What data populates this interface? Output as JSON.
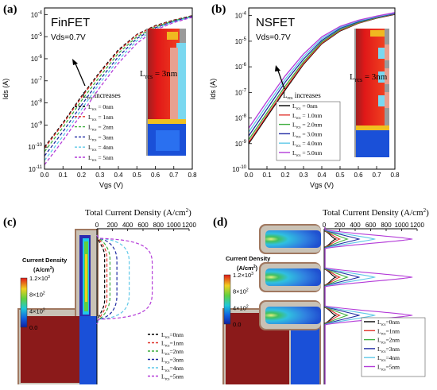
{
  "panels": {
    "a": {
      "label": "(a)",
      "title": "FinFET",
      "vds": "Vds=0.7V",
      "xlabel": "Vgs (V)",
      "ylabel": "Ids (A)",
      "arrow_label": "L",
      "arrow_sub": "rcs",
      "arrow_text": " increases",
      "lrcs_label": "L",
      "lrcs_sub": "rcs",
      "lrcs_value": " = 3nm",
      "x_ticks": [
        "0.0",
        "0.1",
        "0.2",
        "0.3",
        "0.4",
        "0.5",
        "0.6",
        "0.7",
        "0.8"
      ],
      "y_ticks": [
        {
          "base": "10",
          "exp": "-4"
        },
        {
          "base": "10",
          "exp": "-5"
        },
        {
          "base": "10",
          "exp": "-6"
        },
        {
          "base": "10",
          "exp": "-7"
        },
        {
          "base": "10",
          "exp": "-8"
        },
        {
          "base": "10",
          "exp": "-9"
        },
        {
          "base": "10",
          "exp": "-10"
        },
        {
          "base": "10",
          "exp": "-11"
        }
      ],
      "legend": [
        {
          "sub": "rcs",
          "val": " = 0nm",
          "color": "#000000"
        },
        {
          "sub": "rcs",
          "val": " = 1nm",
          "color": "#e0342c"
        },
        {
          "sub": "rcs",
          "val": " = 2nm",
          "color": "#3fae3f"
        },
        {
          "sub": "rcs",
          "val": " = 3nm",
          "color": "#1f2aa3"
        },
        {
          "sub": "rcs",
          "val": " = 4nm",
          "color": "#5fc8e8"
        },
        {
          "sub": "rcs",
          "val": " = 5nm",
          "color": "#b43cd8"
        }
      ]
    },
    "b": {
      "label": "(b)",
      "title": "NSFET",
      "vds": "Vds=0.7V",
      "xlabel": "Vgs (V)",
      "ylabel": "Ids (A)",
      "arrow_label": "L",
      "arrow_sub": "rcs",
      "arrow_text": " increases",
      "lrcs_label": "L",
      "lrcs_sub": "rcs",
      "lrcs_value": " = 3nm",
      "x_ticks": [
        "0.0",
        "0.1",
        "0.2",
        "0.3",
        "0.4",
        "0.5",
        "0.6",
        "0.7",
        "0.8"
      ],
      "y_ticks": [
        {
          "base": "10",
          "exp": "-4"
        },
        {
          "base": "10",
          "exp": "-5"
        },
        {
          "base": "10",
          "exp": "-6"
        },
        {
          "base": "10",
          "exp": "-7"
        },
        {
          "base": "10",
          "exp": "-8"
        },
        {
          "base": "10",
          "exp": "-9"
        },
        {
          "base": "10",
          "exp": "-10"
        }
      ],
      "legend": [
        {
          "sub": "rcs",
          "val": " = 0nm",
          "color": "#000000"
        },
        {
          "sub": "rcs",
          "val": " = 1.0nm",
          "color": "#e0342c"
        },
        {
          "sub": "rcs",
          "val": " = 2.0nm",
          "color": "#3fae3f"
        },
        {
          "sub": "rcs",
          "val": " = 3.0nm",
          "color": "#1f2aa3"
        },
        {
          "sub": "rcs",
          "val": " = 4.0nm",
          "color": "#5fc8e8"
        },
        {
          "sub": "rcs",
          "val": " = 5.0nm",
          "color": "#b43cd8"
        }
      ]
    },
    "c": {
      "label": "(c)",
      "axis_title": "Total Current Density (A/cm",
      "axis_title_sup": "2",
      "axis_title_end": ")",
      "x_ticks": [
        "0",
        "200",
        "400",
        "600",
        "800",
        "1000",
        "1200"
      ],
      "cb_title1": "Current Density",
      "cb_title2a": "(A/cm",
      "cb_title2sup": "2",
      "cb_title2b": ")",
      "cb_ticks": [
        {
          "m": "1.2",
          "e": "3"
        },
        {
          "m": "8",
          "e": "2"
        },
        {
          "m": "4",
          "e": "2"
        },
        {
          "m": "0.0",
          "e": ""
        }
      ],
      "legend": [
        {
          "sub": "rcs",
          "val": "=0nm",
          "color": "#000000"
        },
        {
          "sub": "rcs",
          "val": "=1nm",
          "color": "#e0342c"
        },
        {
          "sub": "rcs",
          "val": "=2nm",
          "color": "#3fae3f"
        },
        {
          "sub": "rcs",
          "val": "=3nm",
          "color": "#1f2aa3"
        },
        {
          "sub": "rcs",
          "val": "=4nm",
          "color": "#5fc8e8"
        },
        {
          "sub": "rcs",
          "val": "=5nm",
          "color": "#b43cd8"
        }
      ]
    },
    "d": {
      "label": "(d)",
      "axis_title": "Total Current Density (A/cm",
      "axis_title_sup": "2",
      "axis_title_end": ")",
      "x_ticks": [
        "0",
        "200",
        "400",
        "600",
        "800",
        "1000",
        "1200"
      ],
      "cb_title1": "Current Density",
      "cb_title2a": "(A/cm",
      "cb_title2sup": "2",
      "cb_title2b": ")",
      "cb_ticks": [
        {
          "m": "1.2",
          "e": "3"
        },
        {
          "m": "8",
          "e": "2"
        },
        {
          "m": "4",
          "e": "2"
        },
        {
          "m": "0.0",
          "e": ""
        }
      ],
      "legend": [
        {
          "sub": "rcs",
          "val": "=0nm",
          "color": "#000000"
        },
        {
          "sub": "rcs",
          "val": "=1nm",
          "color": "#e0342c"
        },
        {
          "sub": "rcs",
          "val": "=2nm",
          "color": "#3fae3f"
        },
        {
          "sub": "rcs",
          "val": "=3nm",
          "color": "#1f2aa3"
        },
        {
          "sub": "rcs",
          "val": "=4nm",
          "color": "#5fc8e8"
        },
        {
          "sub": "rcs",
          "val": "=5nm",
          "color": "#b43cd8"
        }
      ]
    }
  },
  "chart_data": [
    {
      "type": "line",
      "panel": "a",
      "title": "FinFET",
      "xlabel": "Vgs (V)",
      "ylabel": "Ids (A)",
      "xlim": [
        0,
        0.8
      ],
      "ylim_log10": [
        -11,
        -3.7
      ],
      "yscale": "log",
      "line_style": "dashed",
      "x": [
        0.0,
        0.1,
        0.2,
        0.3,
        0.4,
        0.5,
        0.6,
        0.7,
        0.8
      ],
      "series": [
        {
          "name": "Lrcs = 0nm",
          "color": "#000000",
          "log10_y": [
            -10.0,
            -8.9,
            -7.7,
            -6.6,
            -5.6,
            -4.9,
            -4.5,
            -4.25,
            -4.05
          ]
        },
        {
          "name": "Lrcs = 1nm",
          "color": "#e0342c",
          "log10_y": [
            -10.05,
            -8.95,
            -7.75,
            -6.65,
            -5.65,
            -4.92,
            -4.52,
            -4.26,
            -4.06
          ]
        },
        {
          "name": "Lrcs = 2nm",
          "color": "#3fae3f",
          "log10_y": [
            -10.2,
            -9.1,
            -7.9,
            -6.8,
            -5.75,
            -5.0,
            -4.56,
            -4.28,
            -4.07
          ]
        },
        {
          "name": "Lrcs = 3nm",
          "color": "#1f2aa3",
          "log10_y": [
            -10.4,
            -9.3,
            -8.1,
            -6.95,
            -5.9,
            -5.08,
            -4.6,
            -4.3,
            -4.08
          ]
        },
        {
          "name": "Lrcs = 4nm",
          "color": "#5fc8e8",
          "log10_y": [
            -10.6,
            -9.5,
            -8.3,
            -7.1,
            -6.05,
            -5.18,
            -4.65,
            -4.33,
            -4.1
          ]
        },
        {
          "name": "Lrcs = 5nm",
          "color": "#b43cd8",
          "log10_y": [
            -10.8,
            -9.7,
            -8.5,
            -7.3,
            -6.2,
            -5.3,
            -4.7,
            -4.36,
            -4.12
          ]
        }
      ]
    },
    {
      "type": "line",
      "panel": "b",
      "title": "NSFET",
      "xlabel": "Vgs (V)",
      "ylabel": "Ids (A)",
      "xlim": [
        0,
        0.8
      ],
      "ylim_log10": [
        -10,
        -3.7
      ],
      "yscale": "log",
      "line_style": "solid",
      "x": [
        0.0,
        0.1,
        0.2,
        0.3,
        0.4,
        0.5,
        0.6,
        0.7,
        0.8
      ],
      "series": [
        {
          "name": "Lrcs = 0nm",
          "color": "#000000",
          "log10_y": [
            -9.0,
            -7.95,
            -6.9,
            -5.9,
            -5.1,
            -4.6,
            -4.3,
            -4.1,
            -3.95
          ]
        },
        {
          "name": "Lrcs = 1.0nm",
          "color": "#e0342c",
          "log10_y": [
            -8.95,
            -7.9,
            -6.85,
            -5.87,
            -5.08,
            -4.58,
            -4.29,
            -4.09,
            -3.94
          ]
        },
        {
          "name": "Lrcs = 2.0nm",
          "color": "#3fae3f",
          "log10_y": [
            -8.85,
            -7.8,
            -6.75,
            -5.8,
            -5.03,
            -4.55,
            -4.27,
            -4.08,
            -3.93
          ]
        },
        {
          "name": "Lrcs = 3.0nm",
          "color": "#1f2aa3",
          "log10_y": [
            -8.7,
            -7.65,
            -6.6,
            -5.7,
            -4.97,
            -4.5,
            -4.24,
            -4.06,
            -3.92
          ]
        },
        {
          "name": "Lrcs = 4.0nm",
          "color": "#5fc8e8",
          "log10_y": [
            -8.55,
            -7.5,
            -6.48,
            -5.6,
            -4.9,
            -4.46,
            -4.21,
            -4.04,
            -3.9
          ]
        },
        {
          "name": "Lrcs = 5.0nm",
          "color": "#b43cd8",
          "log10_y": [
            -8.4,
            -7.35,
            -6.35,
            -5.5,
            -4.83,
            -4.42,
            -4.18,
            -4.02,
            -3.88
          ]
        }
      ]
    },
    {
      "type": "line",
      "panel": "c",
      "xlabel": "Total Current Density (A/cm2)",
      "xlim": [
        0,
        1200
      ],
      "line_style": "dashed",
      "orientation": "horizontal-profile",
      "series": [
        {
          "name": "Lrcs=0nm",
          "color": "#000000",
          "peak": 100
        },
        {
          "name": "Lrcs=1nm",
          "color": "#e0342c",
          "peak": 130
        },
        {
          "name": "Lrcs=2nm",
          "color": "#3fae3f",
          "peak": 170
        },
        {
          "name": "Lrcs=3nm",
          "color": "#1f2aa3",
          "peak": 260
        },
        {
          "name": "Lrcs=4nm",
          "color": "#5fc8e8",
          "peak": 420
        },
        {
          "name": "Lrcs=5nm",
          "color": "#b43cd8",
          "peak": 720
        }
      ]
    },
    {
      "type": "line",
      "panel": "d",
      "xlabel": "Total Current Density (A/cm2)",
      "xlim": [
        0,
        1200
      ],
      "line_style": "solid",
      "orientation": "horizontal-profile",
      "series": [
        {
          "name": "Lrcs=0nm",
          "color": "#000000",
          "peak": 150
        },
        {
          "name": "Lrcs=1nm",
          "color": "#e0342c",
          "peak": 200
        },
        {
          "name": "Lrcs=2nm",
          "color": "#3fae3f",
          "peak": 300
        },
        {
          "name": "Lrcs=3nm",
          "color": "#1f2aa3",
          "peak": 450
        },
        {
          "name": "Lrcs=4nm",
          "color": "#5fc8e8",
          "peak": 650
        },
        {
          "name": "Lrcs=5nm",
          "color": "#b43cd8",
          "peak": 1130
        }
      ]
    }
  ]
}
